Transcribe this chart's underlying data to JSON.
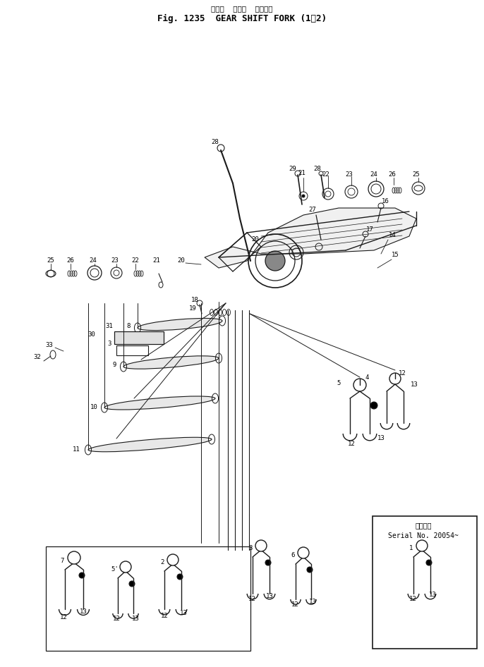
{
  "title_japanese": "キャー  シフト  フォーク",
  "title_english": "Fig. 1235  GEAR SHIFT FORK (1⁄2)",
  "background_color": "#ffffff",
  "line_color": "#1a1a1a",
  "serial_box_japanese": "適用号機",
  "serial_box_english": "Serial No. 20054~",
  "fig_width": 6.86,
  "fig_height": 9.46,
  "dpi": 100
}
